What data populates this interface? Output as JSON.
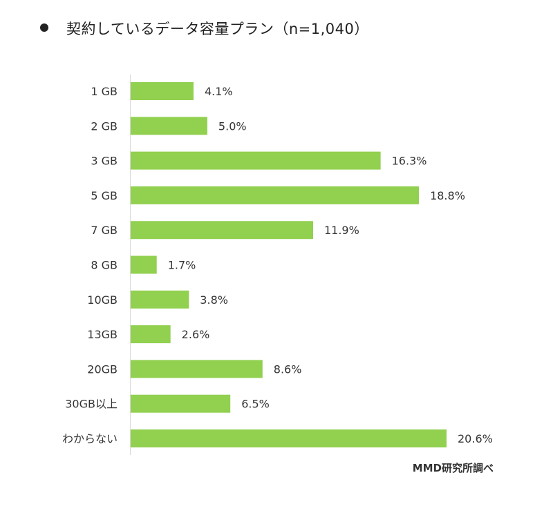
{
  "page": {
    "title": "契約しているデータ容量プラン（n=1,040）",
    "source": "MMD研究所調べ"
  },
  "chart_data": {
    "type": "bar",
    "orientation": "horizontal",
    "categories": [
      "1 GB",
      "2 GB",
      "3 GB",
      "5 GB",
      "7 GB",
      "8 GB",
      "10GB",
      "13GB",
      "20GB",
      "30GB以上",
      "わからない"
    ],
    "values": [
      4.1,
      5.0,
      16.3,
      18.8,
      11.9,
      1.7,
      3.8,
      2.6,
      8.6,
      6.5,
      20.6
    ],
    "value_labels": [
      "4.1%",
      "5.0%",
      "16.3%",
      "18.8%",
      "11.9%",
      "1.7%",
      "3.8%",
      "2.6%",
      "8.6%",
      "6.5%",
      "20.6%"
    ],
    "title": "契約しているデータ容量プラン（n=1,040）",
    "xlim": [
      0,
      20.6
    ],
    "grid": false,
    "legend": "none",
    "bar_color": "#92d050"
  }
}
